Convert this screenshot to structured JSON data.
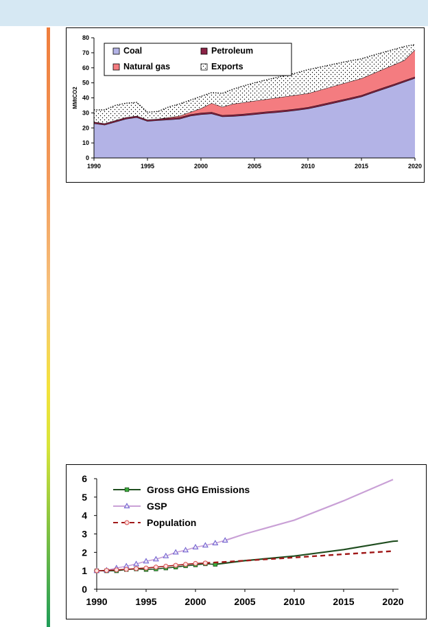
{
  "colors": {
    "top_band": "#d6e8f3",
    "coal": "#b3b3e6",
    "petroleum": "#8b2346",
    "natural_gas": "#f47c80",
    "exports": "#ffffff",
    "ghg": "#1f4d1f",
    "ghg_marker": "#3cae3c",
    "gsp": "#c9a0d6",
    "gsp_marker": "#6a5acd",
    "population": "#a01818",
    "population_marker": "#d84a4a"
  },
  "chart_data": [
    {
      "type": "area",
      "stacked": true,
      "ylabel": "MMtCO2",
      "xlim": [
        1990,
        2020
      ],
      "ylim": [
        0,
        80
      ],
      "x_ticks": [
        1990,
        1995,
        2000,
        2005,
        2010,
        2015,
        2020
      ],
      "y_ticks": [
        0,
        10,
        20,
        30,
        40,
        50,
        60,
        70,
        80
      ],
      "legend_placement": "top-left",
      "x": [
        1990,
        1991,
        1992,
        1993,
        1994,
        1995,
        1996,
        1997,
        1998,
        1999,
        2000,
        2001,
        2002,
        2003,
        2004,
        2005,
        2006,
        2007,
        2008,
        2009,
        2010,
        2011,
        2012,
        2013,
        2014,
        2015,
        2016,
        2017,
        2018,
        2019,
        2020
      ],
      "series": [
        {
          "name": "Coal",
          "color_key": "coal",
          "values": [
            23,
            22,
            24,
            26,
            27,
            24.5,
            25,
            25.5,
            26,
            28,
            29,
            29.5,
            27.5,
            27.8,
            28.3,
            29,
            29.7,
            30.3,
            31,
            31.8,
            32.8,
            34.3,
            35.9,
            37.5,
            39.1,
            40.8,
            43.3,
            45.7,
            48.1,
            50.6,
            53.1
          ]
        },
        {
          "name": "Petroleum",
          "color_key": "petroleum",
          "values": [
            1,
            1,
            1,
            1,
            1,
            1,
            1,
            1,
            1,
            1,
            1,
            1,
            1,
            1,
            1,
            1,
            1,
            1,
            1,
            1,
            1,
            1,
            1,
            1,
            1,
            1,
            1,
            1,
            1,
            1,
            1
          ]
        },
        {
          "name": "Natural gas",
          "color_key": "natural_gas",
          "values": [
            0,
            0,
            0,
            0,
            0,
            0,
            0,
            0.5,
            1,
            1.5,
            3,
            6,
            5.5,
            7.2,
            7.7,
            8,
            8.3,
            8.7,
            9,
            9.2,
            9.2,
            9.7,
            10.1,
            10.5,
            10.9,
            11.2,
            11.7,
            12.3,
            12.9,
            13.4,
            17.9
          ]
        },
        {
          "name": "Exports",
          "color_key": "exports",
          "values": [
            8,
            9,
            10,
            9.5,
            9,
            5,
            5,
            7,
            8,
            8,
            8,
            7,
            9,
            9.8,
            11,
            12,
            12.8,
            13.5,
            14,
            14.8,
            15.8,
            15.3,
            14.8,
            14.3,
            13.8,
            13,
            12.2,
            11.2,
            10.2,
            9.2,
            3.5
          ]
        }
      ]
    },
    {
      "type": "line",
      "xlim": [
        1990,
        2020
      ],
      "ylim": [
        0,
        6
      ],
      "x_ticks": [
        1990,
        1995,
        2000,
        2005,
        2010,
        2015,
        2020
      ],
      "y_ticks": [
        0,
        1,
        2,
        3,
        4,
        5,
        6
      ],
      "legend_placement": "top-left",
      "series": [
        {
          "name": "Gross GHG Emissions",
          "color_key": "ghg",
          "marker": "square",
          "marker_color_key": "ghg_marker",
          "historical_x": [
            1990,
            1991,
            1992,
            1993,
            1994,
            1995,
            1996,
            1997,
            1998,
            1999,
            2000,
            2001,
            2002
          ],
          "historical_y": [
            1.0,
            1.0,
            1.0,
            1.07,
            1.1,
            1.07,
            1.1,
            1.15,
            1.2,
            1.27,
            1.32,
            1.38,
            1.35
          ],
          "projected_x": [
            2002,
            2005,
            2010,
            2015,
            2020,
            2020.5
          ],
          "projected_y": [
            1.35,
            1.55,
            1.8,
            2.15,
            2.6,
            2.62
          ]
        },
        {
          "name": "GSP",
          "color_key": "gsp",
          "marker": "triangle",
          "marker_color_key": "gsp_marker",
          "historical_x": [
            1990,
            1991,
            1992,
            1993,
            1994,
            1995,
            1996,
            1997,
            1998,
            1999,
            2000,
            2001,
            2002,
            2003
          ],
          "historical_y": [
            1.0,
            1.03,
            1.15,
            1.25,
            1.37,
            1.52,
            1.63,
            1.8,
            2.0,
            2.12,
            2.28,
            2.38,
            2.5,
            2.65
          ],
          "projected_x": [
            2003,
            2005,
            2010,
            2015,
            2020
          ],
          "projected_y": [
            2.65,
            3.0,
            3.75,
            4.8,
            5.95
          ]
        },
        {
          "name": "Population",
          "color_key": "population",
          "marker": "circle",
          "marker_color_key": "population_marker",
          "dashed_projection": true,
          "historical_x": [
            1990,
            1991,
            1992,
            1993,
            1994,
            1995,
            1996,
            1997,
            1998,
            1999,
            2000,
            2001
          ],
          "historical_y": [
            1.0,
            1.02,
            1.05,
            1.08,
            1.12,
            1.15,
            1.2,
            1.25,
            1.3,
            1.35,
            1.4,
            1.42
          ],
          "projected_x": [
            2001,
            2005,
            2010,
            2015,
            2020
          ],
          "projected_y": [
            1.42,
            1.55,
            1.72,
            1.9,
            2.07
          ]
        }
      ]
    }
  ]
}
